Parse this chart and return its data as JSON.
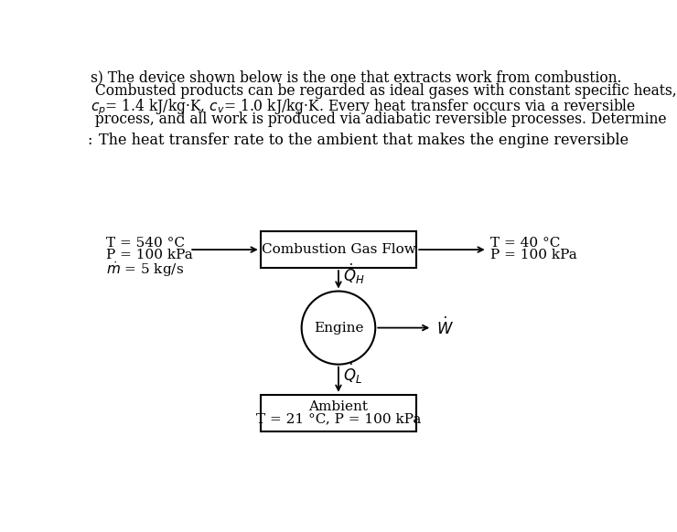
{
  "line1": "s) The device shown below is the one that extracts work from combustion.",
  "line2": " Combusted products can be regarded as ideal gases with constant specific heats,",
  "line3_a": "$c_p$= 1.4 kJ/kg·K, $c_v$= 1.0 kJ/kg·K. Every heat transfer occurs via a reversible",
  "line4": " process, and all work is produced via adiabatic reversible processes. Determine",
  "subtitle": "   The heat transfer rate to the ambient that makes the engine reversible",
  "inlet_line1": "T = 540 °C",
  "inlet_line2": "P = 100 kPa",
  "inlet_line3": "$\\dot{m}$ = 5 kg/s",
  "outlet_line1": "T = 40 °C",
  "outlet_line2": "P = 100 kPa",
  "combustion_label": "Combustion Gas Flow",
  "engine_label": "Engine",
  "ambient_line1": "Ambient",
  "ambient_line2": "T = 21 °C, P = 100 kPa",
  "QH_label": "$\\dot{Q}_H$",
  "QL_label": "$\\dot{Q}_L$",
  "W_label": "$\\dot{W}$",
  "bg_color": "#ffffff",
  "box_edge_color": "#000000",
  "arrow_color": "#000000",
  "text_color": "#000000",
  "font_size_title": 11.2,
  "font_size_subtitle": 11.5,
  "font_size_diagram": 11.0,
  "font_size_math": 12.0
}
